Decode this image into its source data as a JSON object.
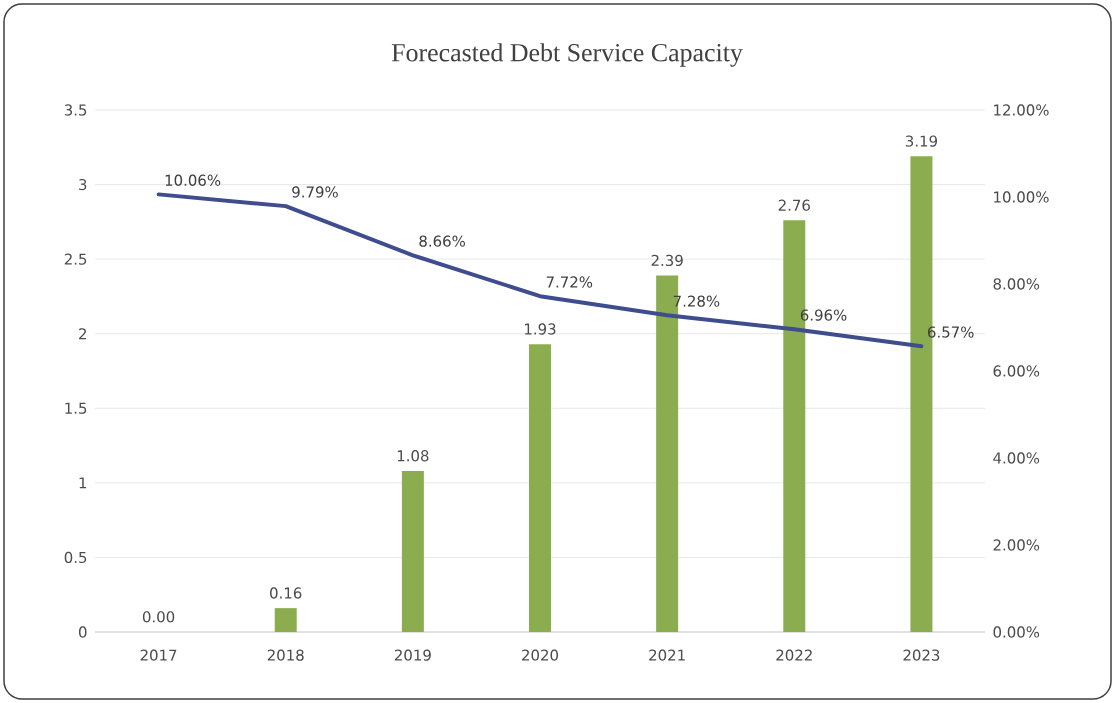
{
  "chart_data": {
    "type": "bar",
    "title": "Forecasted Debt Service Capacity",
    "categories": [
      "2017",
      "2018",
      "2019",
      "2020",
      "2021",
      "2022",
      "2023"
    ],
    "series": [
      {
        "color": "#8bad4f",
        "values": [
          0.0,
          0.16,
          1.08,
          1.93,
          2.39,
          2.76,
          3.19
        ],
        "value_labels": [
          "0.00",
          "0.16",
          "1.08",
          "1.93",
          "2.39",
          "2.76",
          "3.19"
        ]
      },
      {
        "type": "line",
        "axis": "y2",
        "color": "#3f4c8e",
        "values": [
          10.06,
          9.79,
          8.66,
          7.72,
          7.28,
          6.96,
          6.57
        ],
        "value_labels": [
          "10.06%",
          "9.79%",
          "8.66%",
          "7.72%",
          "7.28%",
          "6.96%",
          "6.57%"
        ]
      }
    ],
    "ylim": [
      0,
      3.5
    ],
    "yticks": [
      0,
      0.5,
      1,
      1.5,
      2,
      2.5,
      3,
      3.5
    ],
    "y2lim": [
      0,
      12
    ],
    "y2ticks": [
      {
        "value": 0,
        "label": "0.00%"
      },
      {
        "value": 2,
        "label": "2.00%"
      },
      {
        "value": 4,
        "label": "4.00%"
      },
      {
        "value": 6,
        "label": "6.00%"
      },
      {
        "value": 8,
        "label": "8.00%"
      },
      {
        "value": 10,
        "label": "10.00%"
      },
      {
        "value": 12,
        "label": "12.00%"
      }
    ],
    "grid": "y",
    "legend": false,
    "marker": "none",
    "line_style": "solid"
  }
}
